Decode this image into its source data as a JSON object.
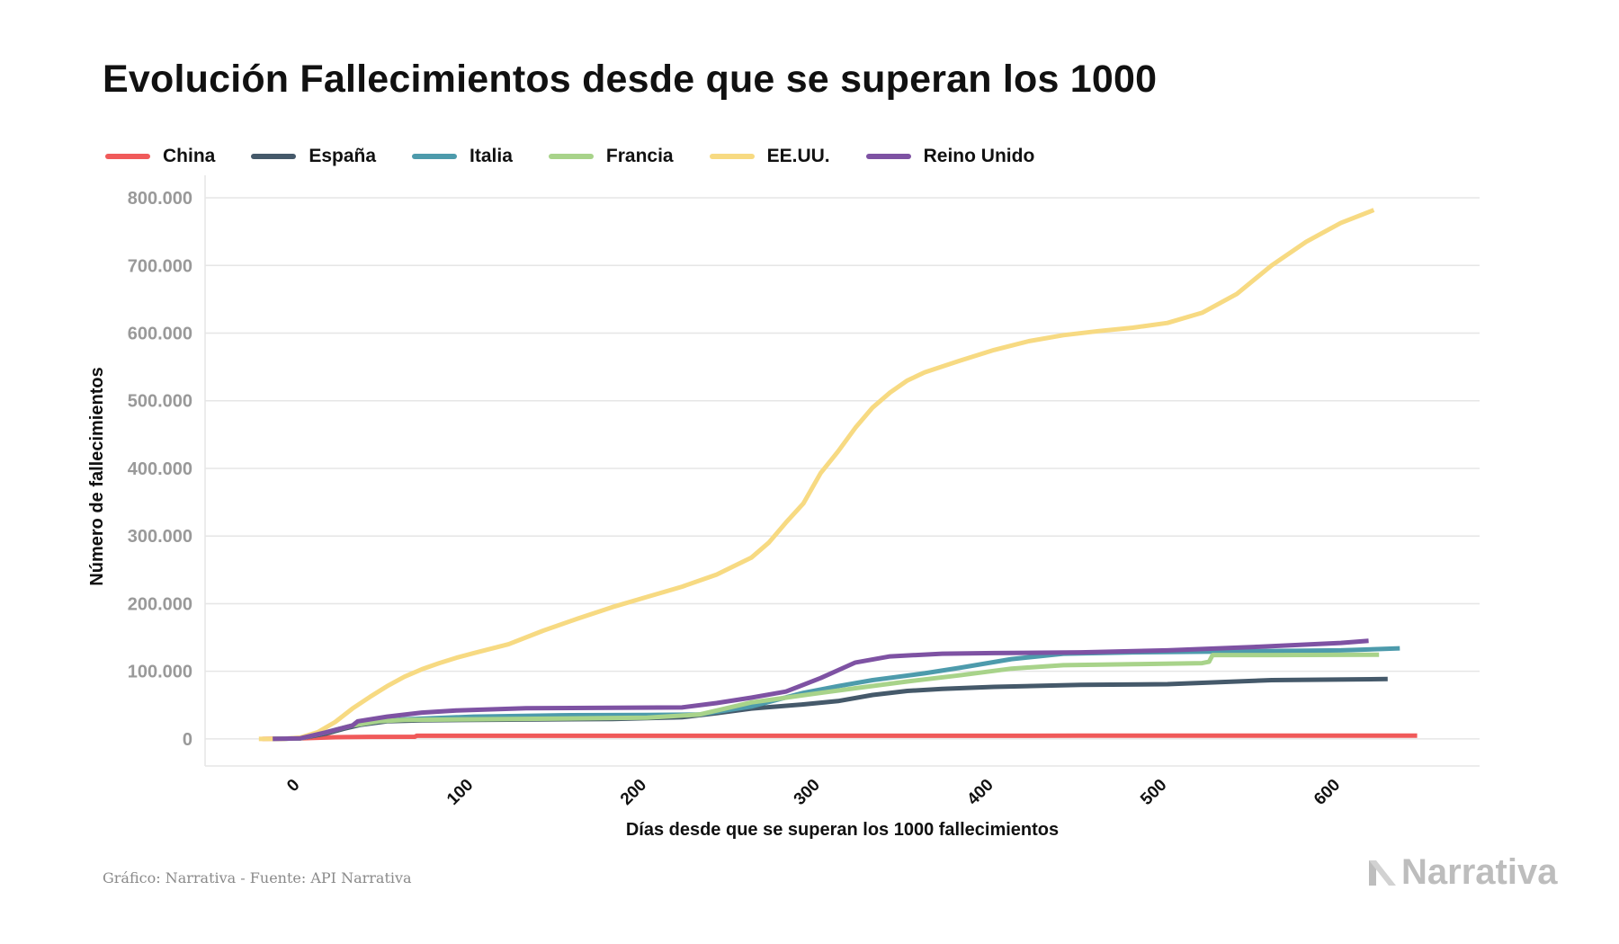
{
  "title": "Evolución Fallecimientos desde que se superan los 1000",
  "source": "Gráfico: Narrativa - Fuente: API Narrativa",
  "brand": "Narrativa",
  "colors": {
    "grid": "#e6e6e6",
    "tick_text": "#999999",
    "axis_text": "#111111"
  },
  "chart_data": {
    "type": "line",
    "title": "Evolución Fallecimientos desde que se superan los 1000",
    "xlabel": "Días desde que se superan los 1000 fallecimientos",
    "ylabel": "Número de fallecimientos",
    "xlim": [
      -55,
      680
    ],
    "ylim": [
      -40000,
      820000
    ],
    "xticks": [
      0,
      100,
      200,
      300,
      400,
      500,
      600
    ],
    "xtick_labels": [
      "0",
      "100",
      "200",
      "300",
      "400",
      "500",
      "600"
    ],
    "yticks": [
      0,
      100000,
      200000,
      300000,
      400000,
      500000,
      600000,
      700000,
      800000
    ],
    "ytick_labels": [
      "0",
      "100.000",
      "200.000",
      "300.000",
      "400.000",
      "500.000",
      "600.000",
      "700.000",
      "800.000"
    ],
    "grid": "horizontal",
    "legend_position": "top-left",
    "series": [
      {
        "name": "China",
        "color": "#f05a5a",
        "points": [
          [
            -22,
            0
          ],
          [
            0,
            1000
          ],
          [
            20,
            2500
          ],
          [
            40,
            3000
          ],
          [
            66,
            3200
          ],
          [
            67,
            4600
          ],
          [
            150,
            4700
          ],
          [
            300,
            4700
          ],
          [
            450,
            4800
          ],
          [
            644,
            4800
          ]
        ]
      },
      {
        "name": "España",
        "color": "#45596a",
        "points": [
          [
            -16,
            0
          ],
          [
            0,
            1000
          ],
          [
            15,
            8000
          ],
          [
            25,
            15000
          ],
          [
            35,
            21000
          ],
          [
            50,
            26000
          ],
          [
            70,
            27500
          ],
          [
            120,
            28400
          ],
          [
            180,
            29500
          ],
          [
            220,
            32000
          ],
          [
            240,
            38000
          ],
          [
            260,
            45000
          ],
          [
            290,
            51000
          ],
          [
            310,
            56000
          ],
          [
            330,
            65000
          ],
          [
            350,
            71000
          ],
          [
            370,
            74000
          ],
          [
            400,
            77000
          ],
          [
            450,
            80000
          ],
          [
            500,
            81000
          ],
          [
            530,
            84000
          ],
          [
            560,
            87000
          ],
          [
            627,
            88500
          ]
        ]
      },
      {
        "name": "Italia",
        "color": "#4d9bac",
        "points": [
          [
            -16,
            0
          ],
          [
            0,
            1000
          ],
          [
            15,
            10000
          ],
          [
            30,
            20000
          ],
          [
            45,
            26000
          ],
          [
            60,
            29000
          ],
          [
            100,
            33000
          ],
          [
            150,
            35000
          ],
          [
            200,
            35500
          ],
          [
            230,
            36000
          ],
          [
            260,
            48000
          ],
          [
            290,
            68000
          ],
          [
            310,
            78000
          ],
          [
            330,
            87000
          ],
          [
            360,
            97000
          ],
          [
            380,
            105000
          ],
          [
            410,
            118000
          ],
          [
            440,
            126000
          ],
          [
            480,
            128000
          ],
          [
            520,
            129000
          ],
          [
            560,
            130000
          ],
          [
            600,
            131000
          ],
          [
            634,
            134000
          ]
        ]
      },
      {
        "name": "Francia",
        "color": "#a8d38a",
        "points": [
          [
            -16,
            0
          ],
          [
            0,
            1000
          ],
          [
            15,
            10000
          ],
          [
            30,
            20000
          ],
          [
            45,
            26000
          ],
          [
            60,
            28000
          ],
          [
            100,
            29000
          ],
          [
            150,
            30000
          ],
          [
            200,
            31500
          ],
          [
            230,
            36000
          ],
          [
            260,
            54000
          ],
          [
            280,
            61000
          ],
          [
            300,
            68000
          ],
          [
            320,
            75000
          ],
          [
            350,
            85000
          ],
          [
            380,
            94000
          ],
          [
            410,
            104000
          ],
          [
            440,
            109000
          ],
          [
            480,
            110500
          ],
          [
            520,
            112000
          ],
          [
            524,
            114000
          ],
          [
            526,
            124000
          ],
          [
            560,
            124000
          ],
          [
            622,
            124500
          ]
        ]
      },
      {
        "name": "EE.UU.",
        "color": "#f7da82",
        "points": [
          [
            -24,
            0
          ],
          [
            -10,
            0
          ],
          [
            0,
            2000
          ],
          [
            10,
            10000
          ],
          [
            20,
            25000
          ],
          [
            30,
            45000
          ],
          [
            40,
            62000
          ],
          [
            50,
            78000
          ],
          [
            60,
            92000
          ],
          [
            70,
            103000
          ],
          [
            80,
            112000
          ],
          [
            90,
            120000
          ],
          [
            100,
            127000
          ],
          [
            120,
            140000
          ],
          [
            140,
            160000
          ],
          [
            160,
            178000
          ],
          [
            180,
            195000
          ],
          [
            200,
            210000
          ],
          [
            220,
            225000
          ],
          [
            240,
            243000
          ],
          [
            260,
            268000
          ],
          [
            270,
            290000
          ],
          [
            280,
            320000
          ],
          [
            290,
            348000
          ],
          [
            300,
            393000
          ],
          [
            310,
            425000
          ],
          [
            320,
            460000
          ],
          [
            330,
            490000
          ],
          [
            340,
            512000
          ],
          [
            350,
            530000
          ],
          [
            360,
            542000
          ],
          [
            380,
            559000
          ],
          [
            400,
            575000
          ],
          [
            420,
            588000
          ],
          [
            440,
            597000
          ],
          [
            460,
            603000
          ],
          [
            480,
            608000
          ],
          [
            500,
            615000
          ],
          [
            520,
            630000
          ],
          [
            540,
            658000
          ],
          [
            560,
            700000
          ],
          [
            580,
            735000
          ],
          [
            600,
            763000
          ],
          [
            619,
            782000
          ]
        ]
      },
      {
        "name": "Reino Unido",
        "color": "#7e52a3",
        "points": [
          [
            -16,
            0
          ],
          [
            0,
            1000
          ],
          [
            15,
            10000
          ],
          [
            30,
            20000
          ],
          [
            33,
            26000
          ],
          [
            50,
            33000
          ],
          [
            70,
            39000
          ],
          [
            90,
            42000
          ],
          [
            130,
            45500
          ],
          [
            180,
            46000
          ],
          [
            220,
            46500
          ],
          [
            240,
            53000
          ],
          [
            260,
            61000
          ],
          [
            280,
            70000
          ],
          [
            300,
            90000
          ],
          [
            320,
            113000
          ],
          [
            340,
            122000
          ],
          [
            370,
            126000
          ],
          [
            400,
            127000
          ],
          [
            450,
            128000
          ],
          [
            500,
            131000
          ],
          [
            550,
            136000
          ],
          [
            600,
            142000
          ],
          [
            616,
            145000
          ]
        ]
      }
    ]
  }
}
